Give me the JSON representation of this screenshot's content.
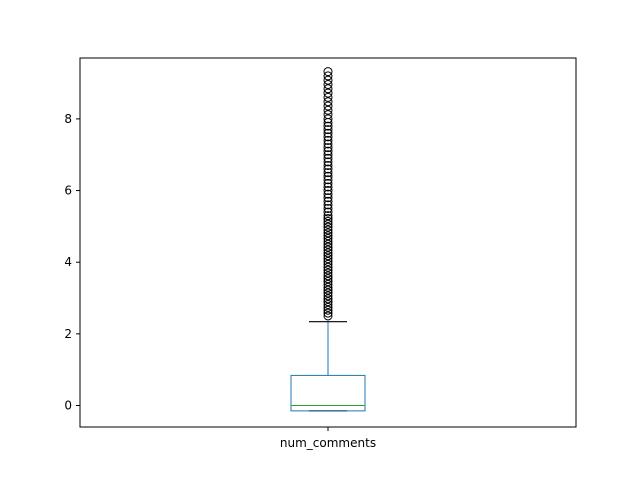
{
  "chart_data": {
    "type": "box",
    "title": "",
    "xlabel": "",
    "ylabel": "",
    "categories": [
      "num_comments"
    ],
    "ylim": [
      -0.6,
      9.7
    ],
    "yticks": [
      0,
      2,
      4,
      6,
      8
    ],
    "grid": false,
    "boxes": [
      {
        "name": "num_comments",
        "whisker_low": -0.15,
        "q1": -0.15,
        "median": 0.0,
        "q3": 0.84,
        "whisker_high": 2.34,
        "fliers": [
          2.5,
          2.58,
          2.66,
          2.74,
          2.82,
          2.9,
          2.98,
          3.06,
          3.14,
          3.22,
          3.3,
          3.38,
          3.46,
          3.54,
          3.62,
          3.7,
          3.78,
          3.86,
          3.94,
          4.02,
          4.1,
          4.18,
          4.26,
          4.34,
          4.42,
          4.5,
          4.58,
          4.66,
          4.74,
          4.82,
          4.9,
          4.98,
          5.06,
          5.14,
          5.22,
          5.3,
          5.4,
          5.5,
          5.6,
          5.7,
          5.8,
          5.9,
          6.0,
          6.1,
          6.2,
          6.3,
          6.4,
          6.5,
          6.6,
          6.7,
          6.8,
          6.9,
          7.0,
          7.1,
          7.2,
          7.3,
          7.4,
          7.5,
          7.6,
          7.7,
          7.8,
          7.9,
          8.0,
          8.12,
          8.24,
          8.36,
          8.48,
          8.6,
          8.72,
          8.84,
          8.96,
          9.08,
          9.2,
          9.32
        ]
      }
    ],
    "colors": {
      "box": "#1f77b4",
      "median": "#2ca02c",
      "flier": "#000000",
      "axes": "#000000"
    }
  }
}
